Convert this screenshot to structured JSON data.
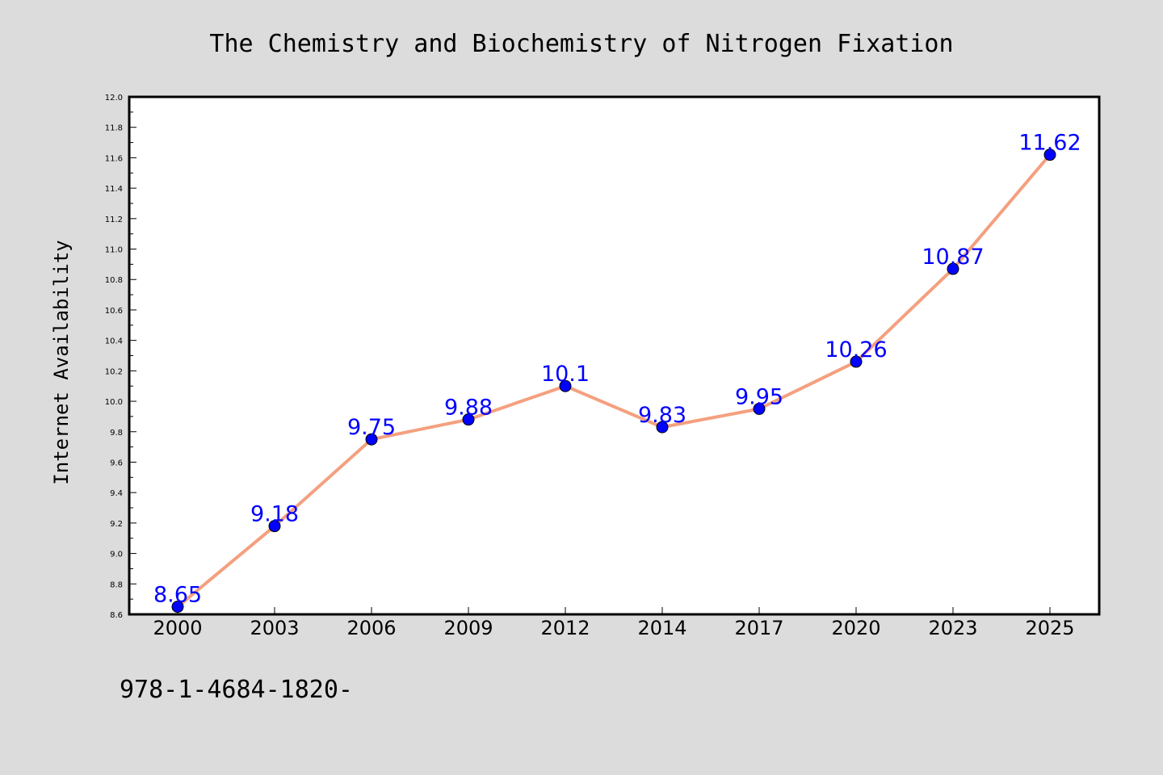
{
  "chart_data": {
    "type": "line",
    "title": "The Chemistry and Biochemistry of Nitrogen Fixation",
    "xlabel": "",
    "ylabel": "Internet Availability",
    "categories": [
      "2000",
      "2003",
      "2006",
      "2009",
      "2012",
      "2014",
      "2017",
      "2020",
      "2023",
      "2025"
    ],
    "series": [
      {
        "values": [
          8.65,
          9.18,
          9.75,
          9.88,
          10.1,
          9.83,
          9.95,
          10.26,
          10.87,
          11.62
        ],
        "data_labels": [
          "8.65",
          "9.18",
          "9.75",
          "9.88",
          "10.1",
          "9.83",
          "9.95",
          "10.26",
          "10.87",
          "11.62"
        ]
      }
    ],
    "ylim": [
      8.6,
      12.0
    ],
    "yticks": [
      "8.6",
      "8.8",
      "9.0",
      "9.2",
      "9.4",
      "9.6",
      "9.8",
      "10.0",
      "10.2",
      "10.4",
      "10.6",
      "10.8",
      "11.0",
      "11.2",
      "11.4",
      "11.6",
      "11.8",
      "12.0"
    ],
    "grid": false,
    "legend": "none",
    "colors": {
      "line": "#f4a07f",
      "marker": "#0000ff",
      "data_label": "#0000ff",
      "background": "#dcdcdc",
      "plot_background": "#ffffff"
    }
  },
  "footer": {
    "text": "978-1-4684-1820-"
  }
}
